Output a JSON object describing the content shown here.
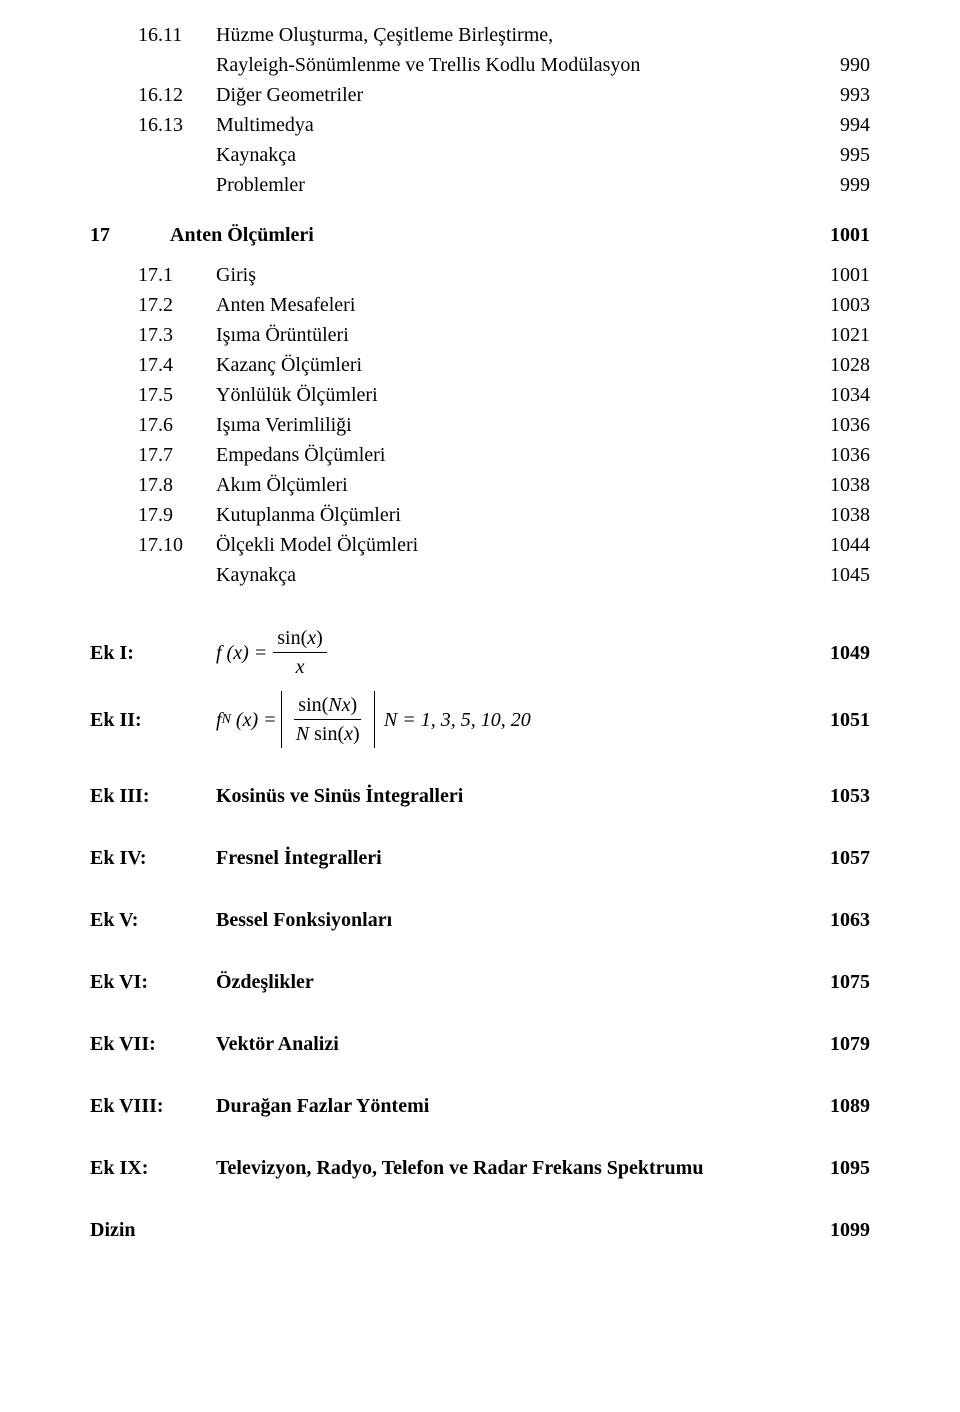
{
  "sections": {
    "s16_11": {
      "num": "16.11",
      "title_l1": "Hüzme Oluşturma, Çeşitleme Birleştirme,",
      "title_l2": "Rayleigh-Sönümlenme ve Trellis Kodlu Modülasyon",
      "page": "990"
    },
    "s16_12": {
      "num": "16.12",
      "title": "Diğer Geometriler",
      "page": "993"
    },
    "s16_13": {
      "num": "16.13",
      "title": "Multimedya",
      "page": "994"
    },
    "s16_k": {
      "title": "Kaynakça",
      "page": "995"
    },
    "s16_p": {
      "title": "Problemler",
      "page": "999"
    },
    "c17": {
      "num": "17",
      "title": "Anten Ölçümleri",
      "page": "1001"
    },
    "s17_1": {
      "num": "17.1",
      "title": "Giriş",
      "page": "1001"
    },
    "s17_2": {
      "num": "17.2",
      "title": "Anten Mesafeleri",
      "page": "1003"
    },
    "s17_3": {
      "num": "17.3",
      "title": "Işıma Örüntüleri",
      "page": "1021"
    },
    "s17_4": {
      "num": "17.4",
      "title": "Kazanç Ölçümleri",
      "page": "1028"
    },
    "s17_5": {
      "num": "17.5",
      "title": "Yönlülük Ölçümleri",
      "page": "1034"
    },
    "s17_6": {
      "num": "17.6",
      "title": "Işıma Verimliliği",
      "page": "1036"
    },
    "s17_7": {
      "num": "17.7",
      "title": "Empedans Ölçümleri",
      "page": "1036"
    },
    "s17_8": {
      "num": "17.8",
      "title": "Akım Ölçümleri",
      "page": "1038"
    },
    "s17_9": {
      "num": "17.9",
      "title": "Kutuplanma Ölçümleri",
      "page": "1038"
    },
    "s17_10": {
      "num": "17.10",
      "title": "Ölçekli Model Ölçümleri",
      "page": "1044"
    },
    "s17_k": {
      "title": "Kaynakça",
      "page": "1045"
    }
  },
  "appendix": {
    "ek1": {
      "label": "Ek I:",
      "page": "1049",
      "formula": {
        "lhs": "f (x) =",
        "num": "sin(x)",
        "den": "x"
      }
    },
    "ek2": {
      "label": "Ek II:",
      "page": "1051",
      "formula": {
        "lhs_a": "f",
        "lhs_sub": "N",
        "lhs_b": "(x) =",
        "num": "sin(Nx)",
        "den": "N sin(x)",
        "tail": "N = 1, 3, 5, 10, 20"
      }
    },
    "ek3": {
      "label": "Ek III:",
      "title": "Kosinüs ve Sinüs İntegralleri",
      "page": "1053"
    },
    "ek4": {
      "label": "Ek IV:",
      "title": "Fresnel İntegralleri",
      "page": "1057"
    },
    "ek5": {
      "label": "Ek V:",
      "title": "Bessel Fonksiyonları",
      "page": "1063"
    },
    "ek6": {
      "label": "Ek VI:",
      "title": "Özdeşlikler",
      "page": "1075"
    },
    "ek7": {
      "label": "Ek VII:",
      "title": "Vektör Analizi",
      "page": "1079"
    },
    "ek8": {
      "label": "Ek VIII:",
      "title": "Durağan Fazlar Yöntemi",
      "page": "1089"
    },
    "ek9": {
      "label": "Ek IX:",
      "title": "Televizyon, Radyo, Telefon ve Radar Frekans Spektrumu",
      "page": "1095"
    }
  },
  "index": {
    "label": "Dizin",
    "page": "1099"
  }
}
